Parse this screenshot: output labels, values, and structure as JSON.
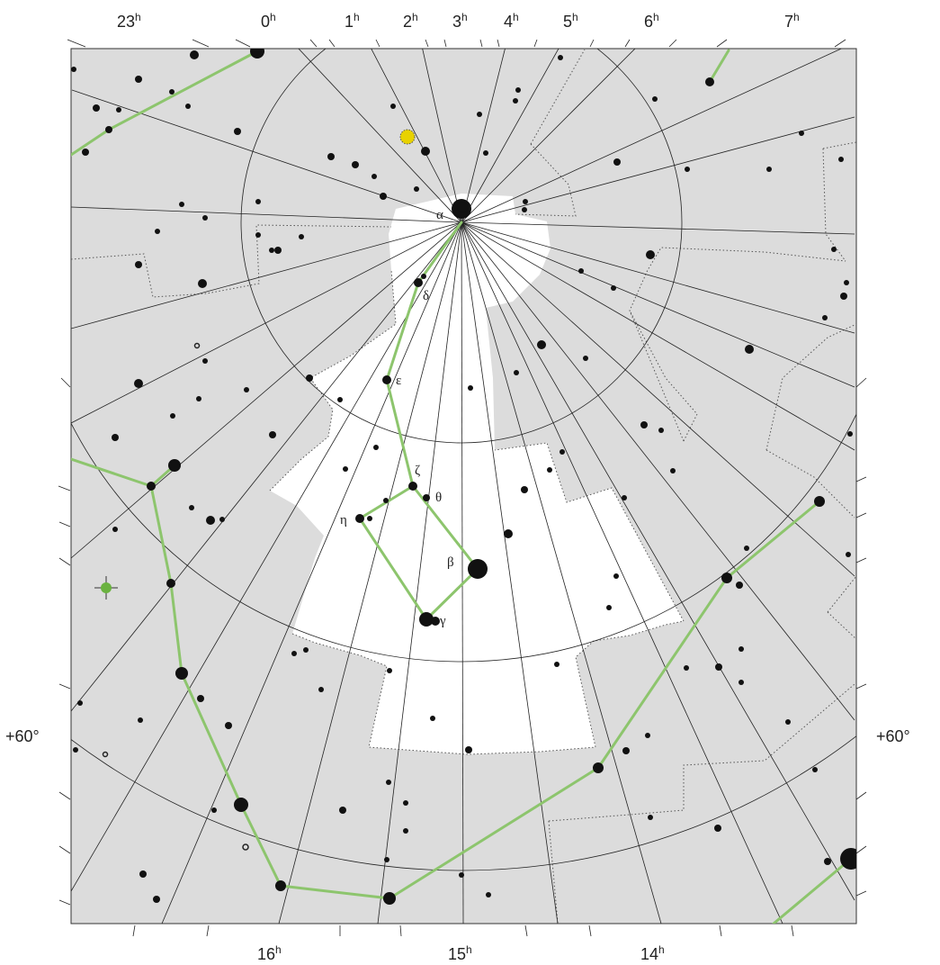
{
  "ra_top_labels": [
    {
      "h": "23",
      "sup": "h"
    },
    {
      "h": "0",
      "sup": "h"
    },
    {
      "h": "1",
      "sup": "h"
    },
    {
      "h": "2",
      "sup": "h"
    },
    {
      "h": "3",
      "sup": "h"
    },
    {
      "h": "4",
      "sup": "h"
    },
    {
      "h": "5",
      "sup": "h"
    },
    {
      "h": "6",
      "sup": "h"
    },
    {
      "h": "7",
      "sup": "h"
    }
  ],
  "ra_bottom_labels": [
    {
      "h": "16",
      "sup": "h"
    },
    {
      "h": "15",
      "sup": "h"
    },
    {
      "h": "14",
      "sup": "h"
    }
  ],
  "dec_labels": {
    "left": "+60°",
    "right": "+60°"
  },
  "star_labels": {
    "alpha": "α",
    "delta": "δ",
    "epsilon": "ε",
    "zeta": "ζ",
    "theta": "θ",
    "eta": "η",
    "beta": "β",
    "gamma": "γ"
  },
  "colors": {
    "background": "#ffffff",
    "outside_constellation": "#dcdcdc",
    "constellation_area": "#ffffff",
    "grid_lines": "#222222",
    "stick_figure": "#8dc56d",
    "stars": "#111111",
    "planet_marker": "#e8d200",
    "variable_marker": "#6ab23f"
  }
}
